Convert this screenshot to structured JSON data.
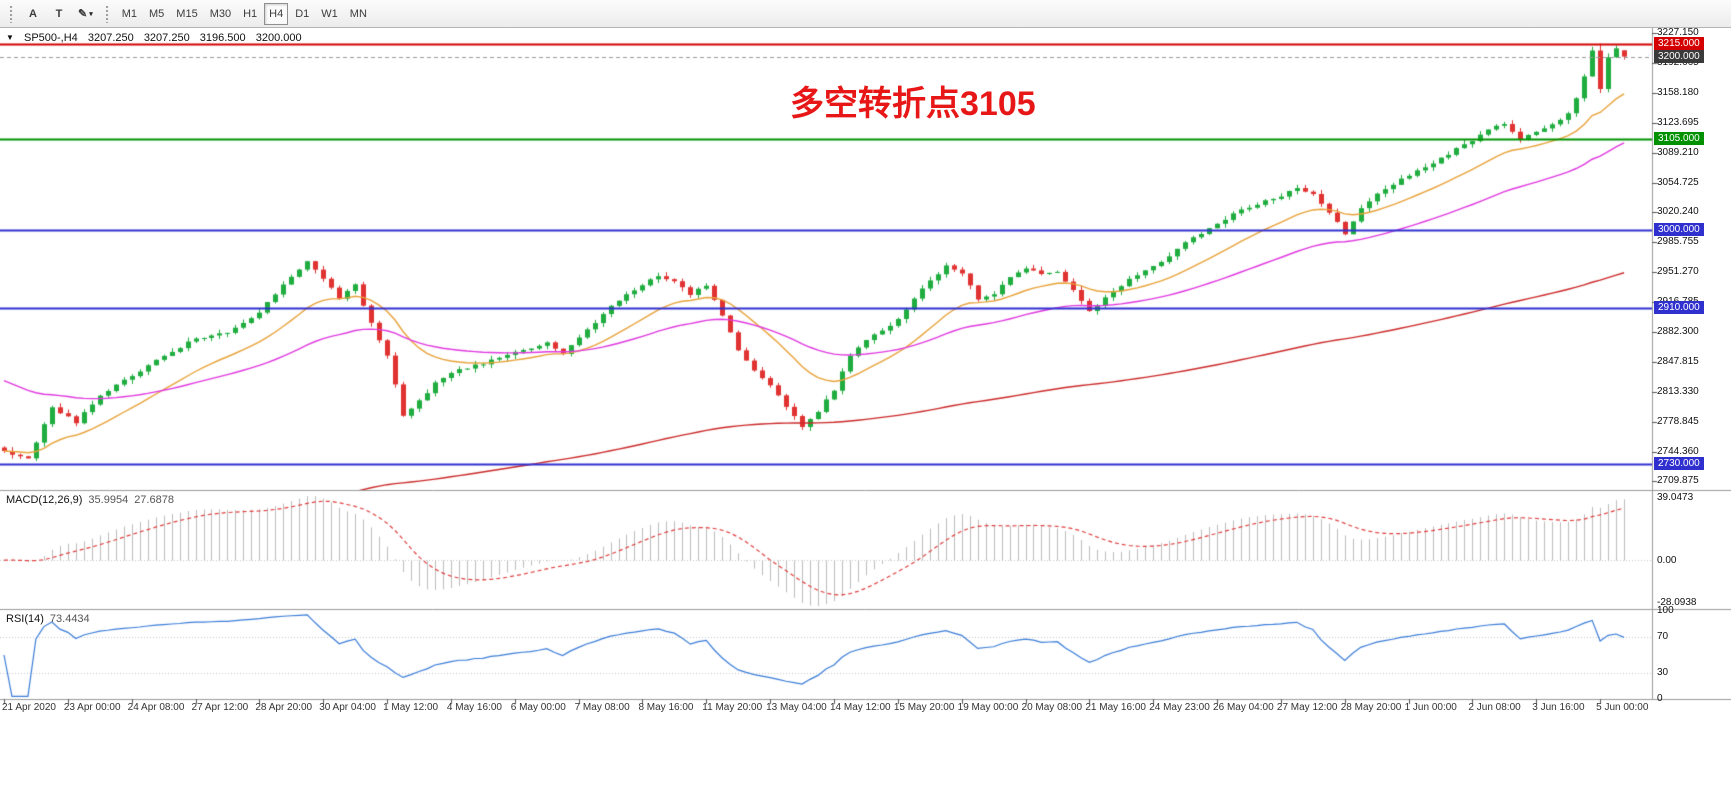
{
  "toolbar": {
    "tools": [
      {
        "id": "label-tool",
        "label": "A"
      },
      {
        "id": "text-tool",
        "label": "T"
      },
      {
        "id": "drawing-tools",
        "label": "✎",
        "caret": "▾"
      }
    ],
    "timeframes": [
      "M1",
      "M5",
      "M15",
      "M30",
      "H1",
      "H4",
      "D1",
      "W1",
      "MN"
    ],
    "active_timeframe": "H4"
  },
  "header": {
    "collapse_icon": "▼",
    "symbol": "SP500-,H4",
    "open": "3207.250",
    "high": "3207.250",
    "low": "3196.500",
    "close": "3200.000"
  },
  "annotation": {
    "text": "多空转折点3105",
    "color": "#e81717"
  },
  "price_axis": {
    "ticks": [
      "3227.150",
      "3192.665",
      "3158.180",
      "3123.695",
      "3089.210",
      "3054.725",
      "3020.240",
      "2985.755",
      "2951.270",
      "2916.785",
      "2882.300",
      "2847.815",
      "2813.330",
      "2778.845",
      "2744.360",
      "2709.875"
    ],
    "badges": [
      {
        "label": "3215.000",
        "color": "#d40000"
      },
      {
        "label": "3200.000",
        "color": "#3a3a3a"
      },
      {
        "label": "3105.000",
        "color": "#009100"
      },
      {
        "label": "3000.000",
        "color": "#3030cf"
      },
      {
        "label": "2910.000",
        "color": "#3030cf"
      },
      {
        "label": "2730.000",
        "color": "#3030cf"
      }
    ]
  },
  "time_axis": {
    "labels": [
      "21 Apr 2020",
      "23 Apr 00:00",
      "24 Apr 08:00",
      "27 Apr 12:00",
      "28 Apr 20:00",
      "30 Apr 04:00",
      "1 May 12:00",
      "4 May 16:00",
      "6 May 00:00",
      "7 May 08:00",
      "8 May 16:00",
      "11 May 20:00",
      "13 May 04:00",
      "14 May 12:00",
      "15 May 20:00",
      "19 May 00:00",
      "20 May 08:00",
      "21 May 16:00",
      "24 May 23:00",
      "26 May 04:00",
      "27 May 12:00",
      "28 May 20:00",
      "1 Jun 00:00",
      "2 Jun 08:00",
      "3 Jun 16:00",
      "5 Jun 00:00"
    ]
  },
  "macd_panel": {
    "name": "MACD(12,26,9)",
    "value1": "35.9954",
    "value2": "27.6878",
    "axis": [
      "39.0473",
      "0.00",
      "-28.0938"
    ]
  },
  "rsi_panel": {
    "name": "RSI(14)",
    "value": "73.4434",
    "axis": [
      "100",
      "70",
      "30",
      "0"
    ]
  },
  "chart_data": {
    "type": "candlestick",
    "symbol": "SP500-",
    "timeframe": "H4",
    "bars": 204,
    "visible_price_range": [
      2700,
      3233
    ],
    "current_bar_ohlc": {
      "open": 3207.25,
      "high": 3207.25,
      "low": 3196.5,
      "close": 3200.0
    },
    "horizontal_levels": [
      {
        "price": 3215,
        "color": "#d40000",
        "style": "solid",
        "width": 2
      },
      {
        "price": 3200,
        "color": "#9a9a9a",
        "style": "dashed",
        "width": 1
      },
      {
        "price": 3105,
        "color": "#009100",
        "style": "solid",
        "width": 2
      },
      {
        "price": 3000,
        "color": "#3030cf",
        "style": "solid",
        "width": 2
      },
      {
        "price": 2910,
        "color": "#3030cf",
        "style": "solid",
        "width": 2
      },
      {
        "price": 2730,
        "color": "#3030cf",
        "style": "solid",
        "width": 2
      }
    ],
    "up_color": "#1fad3f",
    "down_color": "#e13232",
    "wick_volatility": 7,
    "price_path_anchors": [
      [
        0,
        2745
      ],
      [
        3,
        2735
      ],
      [
        6,
        2795
      ],
      [
        9,
        2778
      ],
      [
        12,
        2810
      ],
      [
        16,
        2832
      ],
      [
        20,
        2855
      ],
      [
        24,
        2875
      ],
      [
        28,
        2882
      ],
      [
        32,
        2905
      ],
      [
        35,
        2938
      ],
      [
        38,
        2963
      ],
      [
        40,
        2945
      ],
      [
        42,
        2922
      ],
      [
        44,
        2936
      ],
      [
        46,
        2892
      ],
      [
        48,
        2855
      ],
      [
        50,
        2786
      ],
      [
        52,
        2802
      ],
      [
        54,
        2824
      ],
      [
        56,
        2836
      ],
      [
        60,
        2846
      ],
      [
        64,
        2858
      ],
      [
        68,
        2870
      ],
      [
        70,
        2856
      ],
      [
        72,
        2876
      ],
      [
        74,
        2892
      ],
      [
        76,
        2912
      ],
      [
        78,
        2926
      ],
      [
        80,
        2936
      ],
      [
        82,
        2948
      ],
      [
        84,
        2941
      ],
      [
        86,
        2926
      ],
      [
        88,
        2936
      ],
      [
        90,
        2900
      ],
      [
        92,
        2862
      ],
      [
        94,
        2838
      ],
      [
        96,
        2820
      ],
      [
        98,
        2796
      ],
      [
        100,
        2772
      ],
      [
        102,
        2790
      ],
      [
        104,
        2816
      ],
      [
        106,
        2856
      ],
      [
        108,
        2873
      ],
      [
        110,
        2883
      ],
      [
        112,
        2896
      ],
      [
        114,
        2921
      ],
      [
        116,
        2941
      ],
      [
        118,
        2958
      ],
      [
        120,
        2950
      ],
      [
        122,
        2921
      ],
      [
        124,
        2926
      ],
      [
        126,
        2946
      ],
      [
        128,
        2956
      ],
      [
        130,
        2950
      ],
      [
        132,
        2953
      ],
      [
        134,
        2930
      ],
      [
        136,
        2906
      ],
      [
        138,
        2921
      ],
      [
        140,
        2936
      ],
      [
        142,
        2949
      ],
      [
        144,
        2959
      ],
      [
        146,
        2969
      ],
      [
        148,
        2986
      ],
      [
        150,
        2996
      ],
      [
        152,
        3006
      ],
      [
        154,
        3019
      ],
      [
        156,
        3026
      ],
      [
        158,
        3033
      ],
      [
        160,
        3039
      ],
      [
        162,
        3049
      ],
      [
        164,
        3042
      ],
      [
        166,
        3021
      ],
      [
        168,
        2995
      ],
      [
        170,
        3026
      ],
      [
        172,
        3043
      ],
      [
        174,
        3053
      ],
      [
        176,
        3063
      ],
      [
        178,
        3073
      ],
      [
        180,
        3083
      ],
      [
        182,
        3093
      ],
      [
        184,
        3103
      ],
      [
        186,
        3116
      ],
      [
        188,
        3123
      ],
      [
        190,
        3104
      ],
      [
        192,
        3113
      ],
      [
        194,
        3121
      ],
      [
        196,
        3136
      ],
      [
        197,
        3152
      ],
      [
        198,
        3178
      ],
      [
        199,
        3208
      ],
      [
        200,
        3162
      ],
      [
        201,
        3200
      ],
      [
        202,
        3210
      ],
      [
        203,
        3200
      ]
    ],
    "moving_averages": [
      {
        "period_hint": "fast",
        "color": "#e8a33b",
        "alpha": 0.12,
        "seed": 2745
      },
      {
        "period_hint": "medium",
        "color": "#e03ae0",
        "alpha": 0.045,
        "seed": 2830
      },
      {
        "period_hint": "slow",
        "color": "#cc2a2a",
        "alpha": 0.011,
        "seed": 2590
      }
    ],
    "macd": {
      "fast": 12,
      "slow": 26,
      "signal": 9,
      "histogram_color": "#bdbdbd",
      "signal_color": "#e04040",
      "current_macd": 35.9954,
      "current_signal": 27.6878,
      "axis_max": 39.0473,
      "axis_min": -28.0938
    },
    "rsi": {
      "period": 14,
      "current": 73.4434,
      "line_color": "#3b7dd8",
      "levels": [
        70,
        30
      ]
    }
  }
}
